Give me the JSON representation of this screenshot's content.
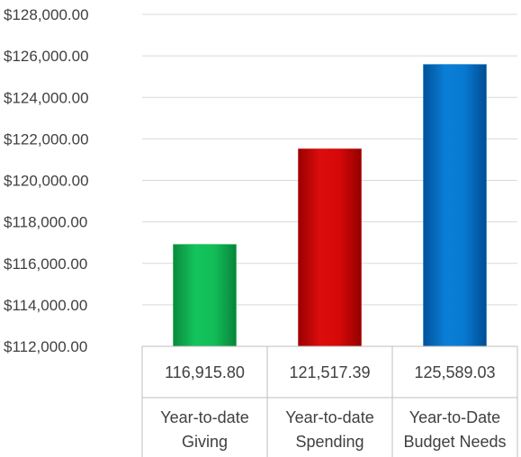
{
  "chart_data": {
    "type": "bar",
    "title": "",
    "xlabel": "",
    "ylabel": "",
    "ylim": [
      112000,
      128000
    ],
    "y_ticks": [
      "$128,000.00",
      "$126,000.00",
      "$124,000.00",
      "$122,000.00",
      "$120,000.00",
      "$118,000.00",
      "$116,000.00",
      "$114,000.00",
      "$112,000.00"
    ],
    "y_tick_values": [
      128000,
      126000,
      124000,
      122000,
      120000,
      118000,
      116000,
      114000,
      112000
    ],
    "grid": true,
    "legend": "none",
    "categories": [
      [
        "Year-to-date",
        "Giving"
      ],
      [
        "Year-to-date",
        "Spending"
      ],
      [
        "Year-to-Date",
        "Budget Needs"
      ]
    ],
    "values": [
      116915.8,
      121517.39,
      125589.03
    ],
    "value_labels": [
      "116,915.80",
      "121,517.39",
      "125,589.03"
    ],
    "colors": [
      "#0fb050",
      "#c00000",
      "#0070c0"
    ]
  }
}
